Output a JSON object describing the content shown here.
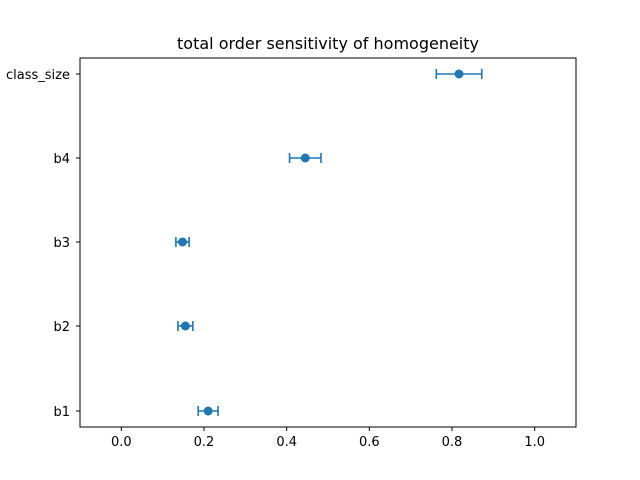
{
  "chart_data": {
    "type": "scatter",
    "title": "total order sensitivity of homogeneity",
    "xlabel": "",
    "ylabel": "",
    "xlim": [
      -0.1,
      1.1
    ],
    "x_ticks": [
      0.0,
      0.2,
      0.4,
      0.6,
      0.8,
      1.0
    ],
    "x_tick_labels": [
      "0.0",
      "0.2",
      "0.4",
      "0.6",
      "0.8",
      "1.0"
    ],
    "grid": false,
    "categories": [
      "b1",
      "b2",
      "b3",
      "b4",
      "class_size"
    ],
    "values": [
      0.21,
      0.155,
      0.148,
      0.445,
      0.817
    ],
    "errors": [
      0.024,
      0.018,
      0.016,
      0.038,
      0.055
    ],
    "color": "#1f77b4"
  }
}
